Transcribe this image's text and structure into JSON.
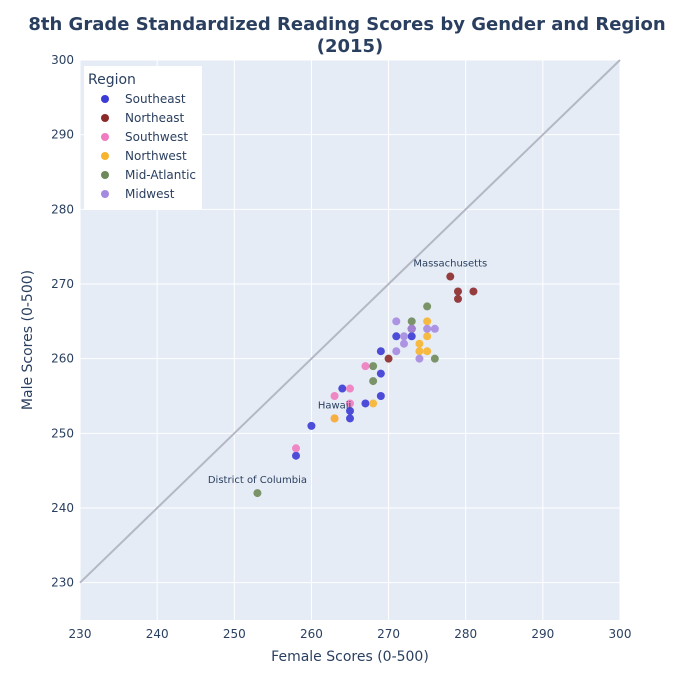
{
  "chart_data": {
    "type": "scatter",
    "title_line1": "8th Grade Standardized Reading Scores by Gender and Region",
    "title_line2": "(2015)",
    "xlabel": "Female Scores (0-500)",
    "ylabel": "Male Scores (0-500)",
    "xlim": [
      230,
      300
    ],
    "ylim": [
      225,
      300
    ],
    "x_ticks": [
      230,
      240,
      250,
      260,
      270,
      280,
      290,
      300
    ],
    "y_ticks": [
      230,
      240,
      250,
      260,
      270,
      280,
      290,
      300
    ],
    "grid": true,
    "legend_title": "Region",
    "legend_position": "top-left",
    "reference_line": {
      "x": [
        230,
        300
      ],
      "y": [
        230,
        300
      ],
      "color": "#b4b8c4"
    },
    "series": [
      {
        "name": "Southeast",
        "color": "#3b3bd6",
        "points": [
          [
            258,
            247
          ],
          [
            260,
            251
          ],
          [
            264,
            256
          ],
          [
            265,
            253
          ],
          [
            265,
            252
          ],
          [
            267,
            254
          ],
          [
            269,
            258
          ],
          [
            269,
            255
          ],
          [
            269,
            261
          ],
          [
            271,
            263
          ],
          [
            273,
            263
          ],
          [
            273,
            264
          ]
        ]
      },
      {
        "name": "Northeast",
        "color": "#8c2a2a",
        "points": [
          [
            278,
            271
          ],
          [
            279,
            269
          ],
          [
            279,
            268
          ],
          [
            281,
            269
          ],
          [
            270,
            260
          ],
          [
            273,
            264
          ]
        ]
      },
      {
        "name": "Southwest",
        "color": "#f07cc0",
        "points": [
          [
            258,
            248
          ],
          [
            263,
            255
          ],
          [
            265,
            256
          ],
          [
            265,
            254
          ],
          [
            267,
            259
          ],
          [
            263,
            252
          ]
        ]
      },
      {
        "name": "Northwest",
        "color": "#f7b52f",
        "points": [
          [
            263,
            252
          ],
          [
            268,
            254
          ],
          [
            274,
            262
          ],
          [
            275,
            263
          ],
          [
            275,
            265
          ],
          [
            275,
            261
          ],
          [
            274,
            261
          ]
        ]
      },
      {
        "name": "Mid-Atlantic",
        "color": "#6e8a5a",
        "points": [
          [
            253,
            242
          ],
          [
            268,
            259
          ],
          [
            268,
            257
          ],
          [
            273,
            265
          ],
          [
            275,
            267
          ],
          [
            276,
            260
          ]
        ]
      },
      {
        "name": "Midwest",
        "color": "#a58be0",
        "points": [
          [
            271,
            265
          ],
          [
            271,
            261
          ],
          [
            272,
            263
          ],
          [
            272,
            262
          ],
          [
            274,
            260
          ],
          [
            275,
            264
          ],
          [
            276,
            264
          ],
          [
            273,
            264
          ]
        ]
      }
    ],
    "annotations": [
      {
        "text": "Massachusetts",
        "x": 278,
        "y": 271
      },
      {
        "text": "Hawaii",
        "x": 263,
        "y": 252
      },
      {
        "text": "District of Columbia",
        "x": 253,
        "y": 242
      }
    ]
  }
}
